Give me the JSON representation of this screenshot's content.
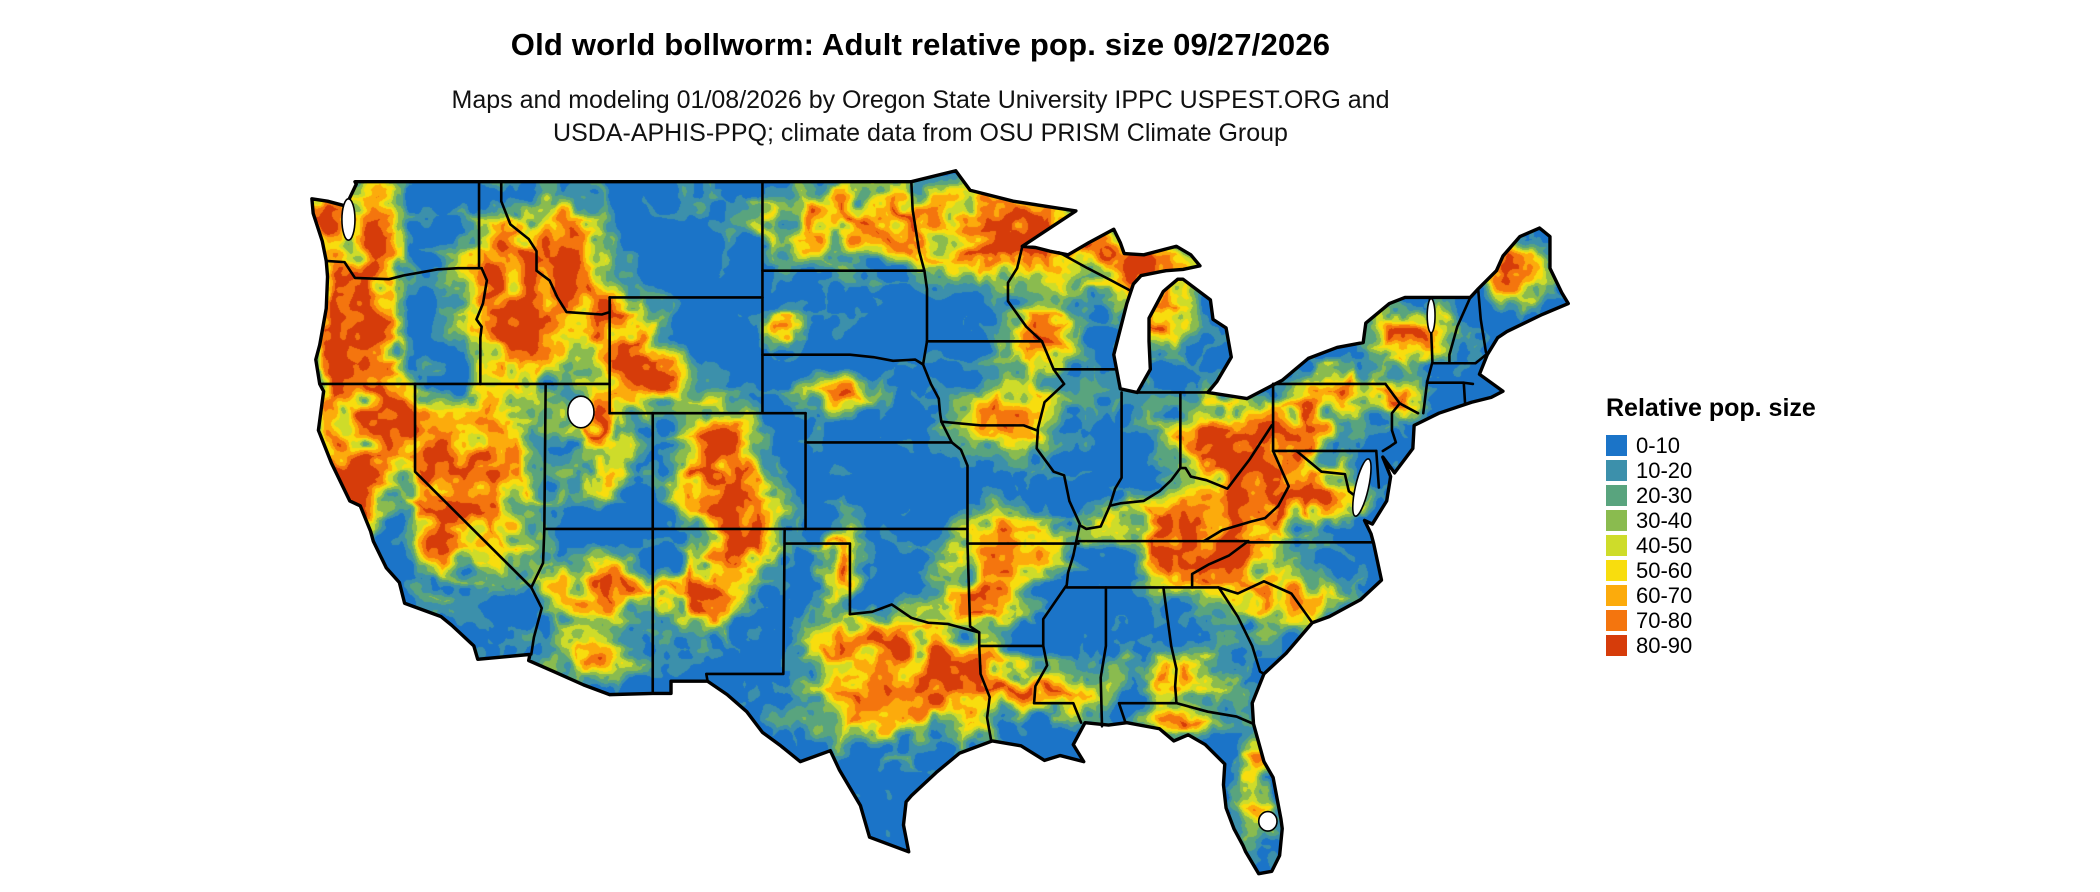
{
  "header": {
    "title": "Old world bollworm: Adult relative pop. size 09/27/2026",
    "subtitle_line1": "Maps and modeling 01/08/2026 by Oregon State University IPPC USPEST.ORG and",
    "subtitle_line2": "USDA-APHIS-PPQ; climate data from OSU PRISM Climate Group"
  },
  "map": {
    "region": "Contiguous United States",
    "border_color": "#000000",
    "background_color": "#ffffff"
  },
  "legend": {
    "title": "Relative pop. size",
    "items": [
      {
        "label": "0-10",
        "color": "#1b74c8"
      },
      {
        "label": "10-20",
        "color": "#3c90ab"
      },
      {
        "label": "20-30",
        "color": "#59a47e"
      },
      {
        "label": "30-40",
        "color": "#8abb4f"
      },
      {
        "label": "40-50",
        "color": "#cedc2a"
      },
      {
        "label": "50-60",
        "color": "#f8dd0e"
      },
      {
        "label": "60-70",
        "color": "#fcab0c"
      },
      {
        "label": "70-80",
        "color": "#f4750e"
      },
      {
        "label": "80-90",
        "color": "#d63c0a"
      }
    ]
  }
}
